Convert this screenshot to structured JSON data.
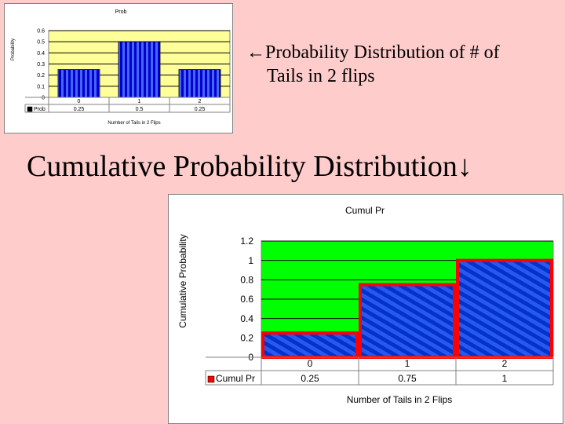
{
  "slide": {
    "subtitle_line1": "←Probability Distribution of # of",
    "subtitle_line2": "Tails in 2 flips",
    "main_title": "Cumulative Probability Distribution↓"
  },
  "chart_data": [
    {
      "type": "bar",
      "title": "Prob",
      "xlabel": "Number of Tails in 2 Flips",
      "ylabel": "Probability",
      "categories": [
        "0",
        "1",
        "2"
      ],
      "series": [
        {
          "name": "Prob",
          "values": [
            0.25,
            0.5,
            0.25
          ]
        }
      ],
      "value_labels": [
        "0.25",
        "0.5",
        "0.25"
      ],
      "ylim": [
        0,
        0.6
      ],
      "yticks": [
        "0",
        "0.1",
        "0.2",
        "0.3",
        "0.4",
        "0.5",
        "0.6"
      ],
      "grid": true,
      "legend": "data-table",
      "colors": {
        "plot_bg": "#ffff99",
        "bar": "#0000cc",
        "legend_key": "#000000"
      }
    },
    {
      "type": "bar",
      "title": "Cumul Pr",
      "xlabel": "Number of Tails in 2 Flips",
      "ylabel": "Cumulative Probability",
      "categories": [
        "0",
        "1",
        "2"
      ],
      "series": [
        {
          "name": "Cumul Pr",
          "values": [
            0.25,
            0.75,
            1
          ]
        }
      ],
      "value_labels": [
        "0.25",
        "0.75",
        "1"
      ],
      "ylim": [
        0,
        1.2
      ],
      "yticks": [
        "0",
        "0.2",
        "0.4",
        "0.6",
        "0.8",
        "1",
        "1.2"
      ],
      "grid": true,
      "legend": "data-table",
      "colors": {
        "plot_bg": "#00ff00",
        "bar": "#0033cc",
        "bar_edge": "#ff0000",
        "legend_key": "#ff0000"
      }
    }
  ]
}
